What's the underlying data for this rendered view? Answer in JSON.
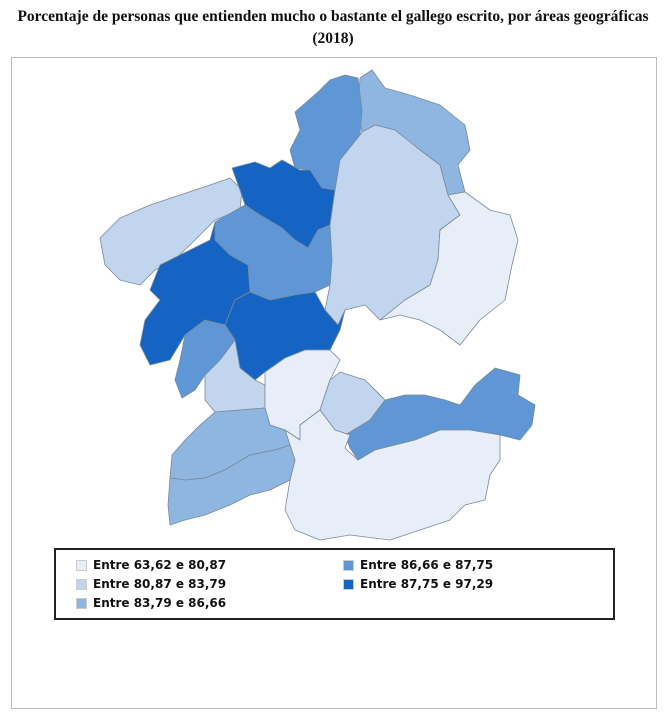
{
  "title": "Porcentaje de personas que entienden mucho o bastante el gallego escrito, por áreas geográficas (2018)",
  "legend": {
    "items": [
      {
        "label": "Entre 63,62 e 80,87",
        "color": "#e8eef8"
      },
      {
        "label": "Entre 80,87 e 83,79",
        "color": "#c2d5ee"
      },
      {
        "label": "Entre 83,79 e 86,66",
        "color": "#8fb5e1"
      },
      {
        "label": "Entre 86,66 e 87,75",
        "color": "#5f96d5"
      },
      {
        "label": "Entre 87,75 e 97,29",
        "color": "#1563c2"
      }
    ]
  },
  "regions": [
    {
      "class": 2
    },
    {
      "class": 3
    },
    {
      "class": 1
    },
    {
      "class": 4
    },
    {
      "class": 3
    },
    {
      "class": 1
    },
    {
      "class": 0
    },
    {
      "class": 4
    },
    {
      "class": 4
    },
    {
      "class": 3
    },
    {
      "class": 1
    },
    {
      "class": 0
    },
    {
      "class": 1
    },
    {
      "class": 3
    },
    {
      "class": 0
    },
    {
      "class": 2
    },
    {
      "class": 2
    }
  ]
}
